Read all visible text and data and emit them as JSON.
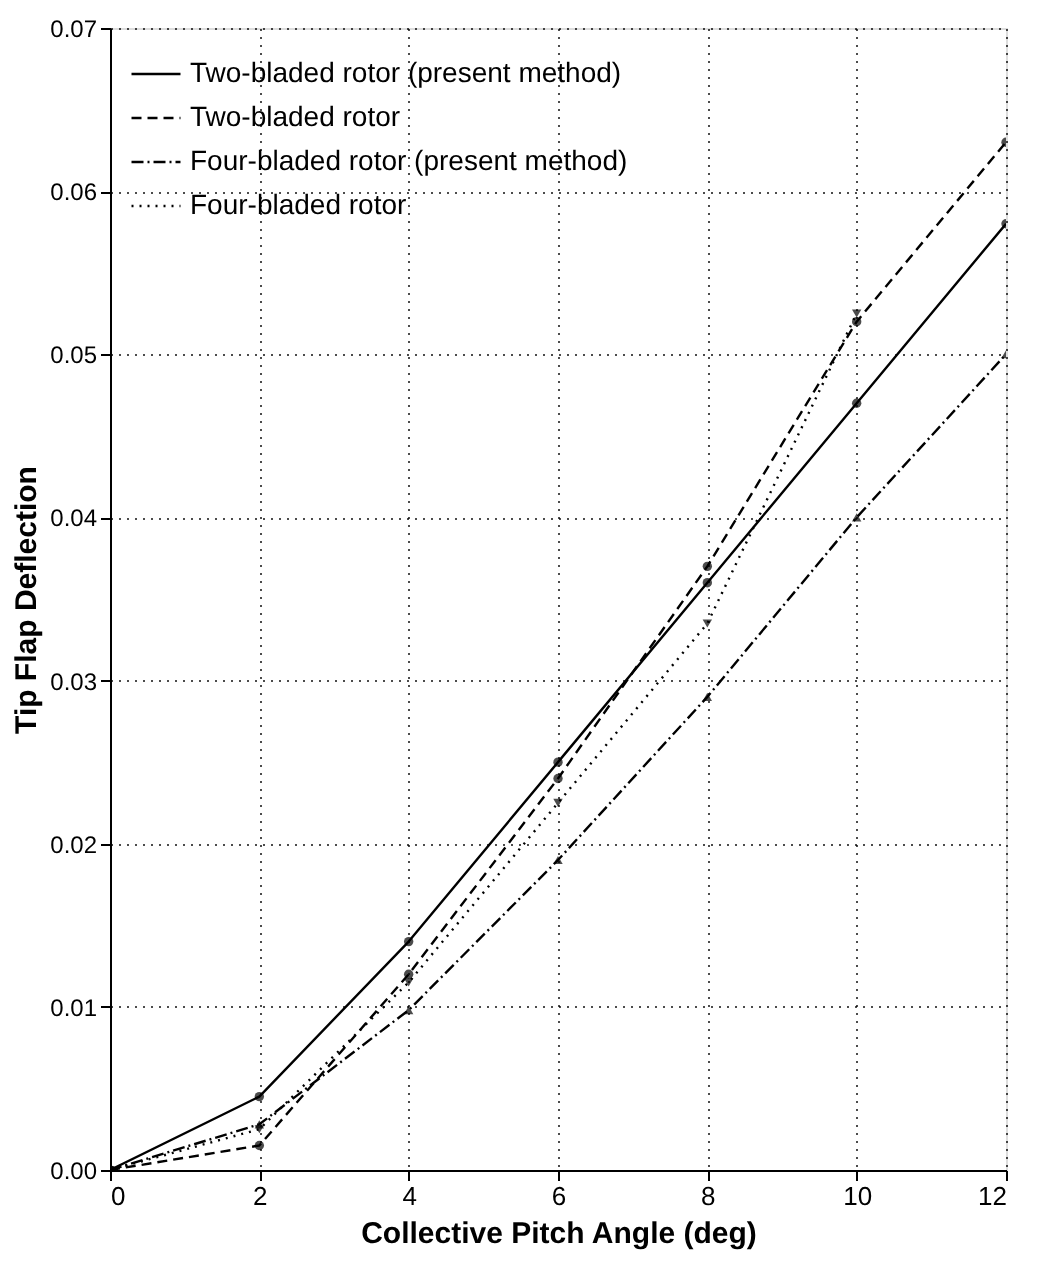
{
  "chart_data": {
    "type": "line",
    "xlabel": "Collective Pitch Angle (deg)",
    "ylabel": "Tip Flap Deflection",
    "xlim": [
      0,
      12
    ],
    "xticks": [
      0,
      2,
      4,
      6,
      8,
      10,
      12
    ],
    "ylim": [
      0,
      0.07
    ],
    "yticks": [
      {
        "value": 0,
        "label": "0.00"
      },
      {
        "value": 0.01,
        "label": "0.01"
      },
      {
        "value": 0.02,
        "label": "0.02"
      },
      {
        "value": 0.03,
        "label": "0.03"
      },
      {
        "value": 0.04,
        "label": "0.04"
      },
      {
        "value": 0.05,
        "label": "0.05"
      },
      {
        "value": 0.06,
        "label": "0.06"
      },
      {
        "value": 0.07,
        "label": "0.07"
      }
    ],
    "grid": true,
    "legend": "top left",
    "series": [
      {
        "name": "Two-bladed rotor (present method)",
        "color": "#000000",
        "line_style": "solid",
        "marker": "circle",
        "x": [
          0,
          2,
          4,
          6,
          8,
          10,
          12
        ],
        "values": [
          0,
          0.0045,
          0.014,
          0.025,
          0.036,
          0.047,
          0.058
        ]
      },
      {
        "name": "Two-bladed rotor",
        "color": "#000000",
        "line_style": "dashed",
        "marker": "circle",
        "x": [
          0,
          2,
          4,
          6,
          8,
          10,
          12
        ],
        "values": [
          0,
          0.0015,
          0.012,
          0.024,
          0.037,
          0.052,
          0.063
        ]
      },
      {
        "name": "Four-bladed rotor (present method)",
        "color": "#000000",
        "line_style": "dashdot",
        "marker": "triangle",
        "x": [
          0,
          2,
          4,
          6,
          8,
          10,
          12
        ],
        "values": [
          0,
          0.0028,
          0.0098,
          0.019,
          0.029,
          0.04,
          0.05
        ]
      },
      {
        "name": "Four-bladed rotor",
        "color": "#000000",
        "line_style": "dotted",
        "marker": "triangle-down",
        "x": [
          0,
          2,
          4,
          6,
          8,
          10
        ],
        "values": [
          0,
          0.0025,
          0.0115,
          0.0225,
          0.0335,
          0.0525
        ]
      }
    ]
  }
}
